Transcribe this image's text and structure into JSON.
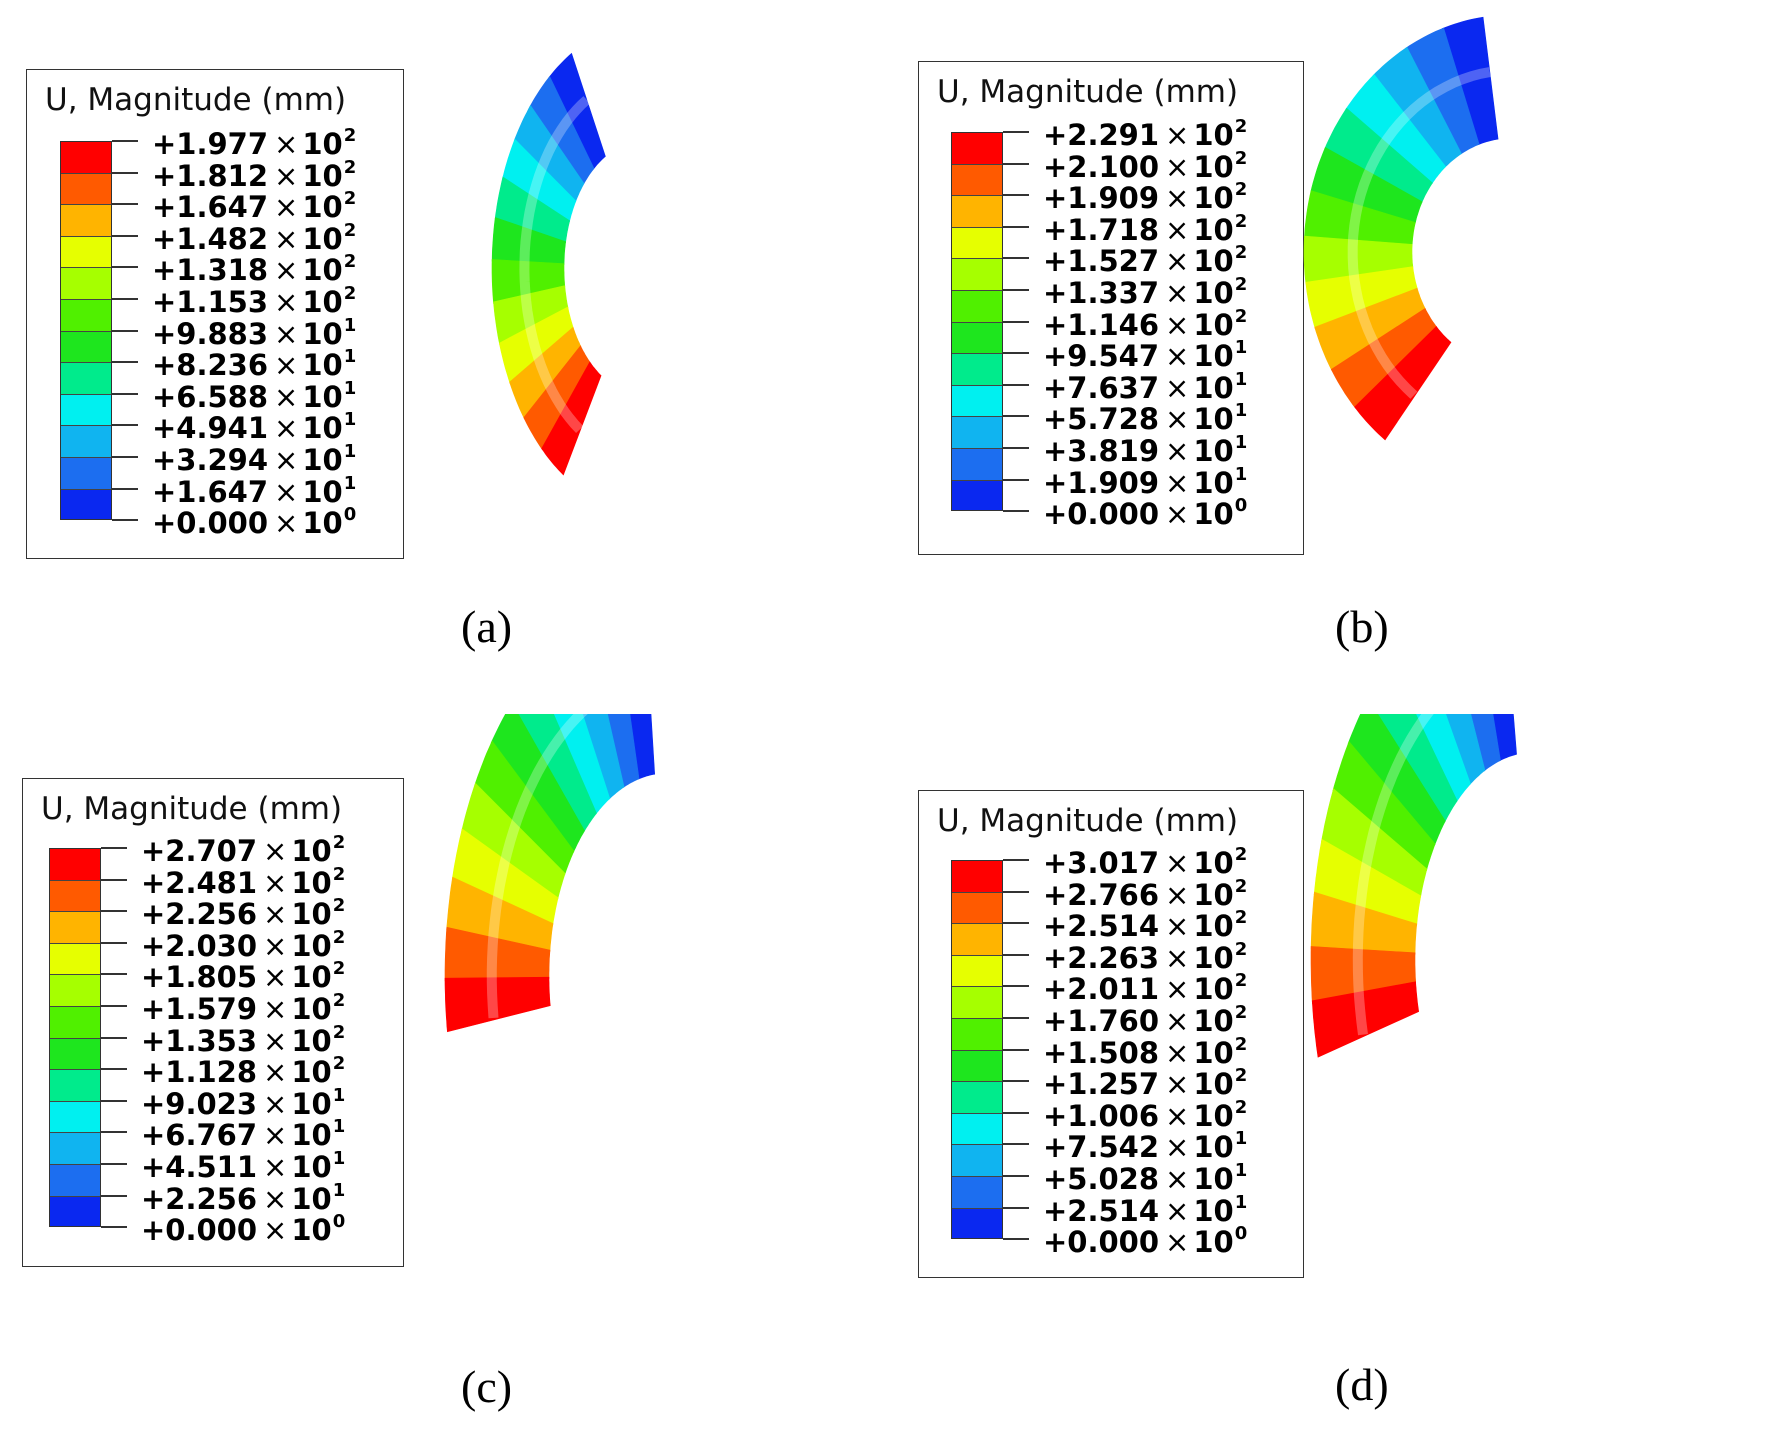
{
  "panels": [
    {
      "caption": "(a)",
      "legend_title": "U, Magnitude (mm)",
      "levels": [
        "+1.977",
        "+1.812",
        "+1.647",
        "+1.482",
        "+1.318",
        "+1.153",
        "+9.883",
        "+8.236",
        "+6.588",
        "+4.941",
        "+3.294",
        "+1.647",
        "+0.000"
      ],
      "exponents": [
        "2",
        "2",
        "2",
        "2",
        "2",
        "2",
        "1",
        "1",
        "1",
        "1",
        "1",
        "1",
        "0"
      ]
    },
    {
      "caption": "(b)",
      "legend_title": "U, Magnitude (mm)",
      "levels": [
        "+2.291",
        "+2.100",
        "+1.909",
        "+1.718",
        "+1.527",
        "+1.337",
        "+1.146",
        "+9.547",
        "+7.637",
        "+5.728",
        "+3.819",
        "+1.909",
        "+0.000"
      ],
      "exponents": [
        "2",
        "2",
        "2",
        "2",
        "2",
        "2",
        "2",
        "1",
        "1",
        "1",
        "1",
        "1",
        "0"
      ]
    },
    {
      "caption": "(c)",
      "legend_title": "U, Magnitude (mm)",
      "levels": [
        "+2.707",
        "+2.481",
        "+2.256",
        "+2.030",
        "+1.805",
        "+1.579",
        "+1.353",
        "+1.128",
        "+9.023",
        "+6.767",
        "+4.511",
        "+2.256",
        "+0.000"
      ],
      "exponents": [
        "2",
        "2",
        "2",
        "2",
        "2",
        "2",
        "2",
        "2",
        "1",
        "1",
        "1",
        "1",
        "0"
      ]
    },
    {
      "caption": "(d)",
      "legend_title": "U, Magnitude (mm)",
      "levels": [
        "+3.017",
        "+2.766",
        "+2.514",
        "+2.263",
        "+2.011",
        "+1.760",
        "+1.508",
        "+1.257",
        "+1.006",
        "+7.542",
        "+5.028",
        "+2.514",
        "+0.000"
      ],
      "exponents": [
        "2",
        "2",
        "2",
        "2",
        "2",
        "2",
        "2",
        "2",
        "2",
        "1",
        "1",
        "1",
        "0"
      ]
    }
  ],
  "times_symbol": "×",
  "base": "10",
  "colormap": [
    "#ff0000",
    "#ff5a00",
    "#ffb400",
    "#e6ff00",
    "#a6ff00",
    "#50f000",
    "#1ee61e",
    "#00eb8c",
    "#00f0f0",
    "#10b4f0",
    "#1c6ef0",
    "#0a28f0"
  ]
}
